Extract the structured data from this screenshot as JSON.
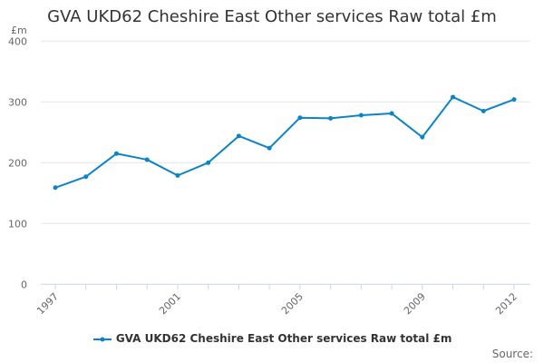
{
  "chart_data": {
    "type": "line",
    "title": "GVA UKD62 Cheshire East Other services Raw total £m",
    "ylabel": "£m",
    "xlabel": "",
    "x": [
      1997,
      1998,
      1999,
      2000,
      2001,
      2002,
      2003,
      2004,
      2005,
      2006,
      2007,
      2008,
      2009,
      2010,
      2011,
      2012
    ],
    "x_tick_labels": [
      "1997",
      "2001",
      "2005",
      "2009",
      "2012"
    ],
    "y_tick_labels": [
      "0",
      "100",
      "200",
      "300",
      "400"
    ],
    "ylim": [
      0,
      400
    ],
    "grid": true,
    "legend_placement": "bottom",
    "series": [
      {
        "name": "GVA UKD62 Cheshire East Other services Raw total £m",
        "color": "#0b84c6",
        "values": [
          159,
          177,
          215,
          205,
          179,
          200,
          244,
          224,
          274,
          273,
          278,
          281,
          242,
          308,
          285,
          304
        ]
      }
    ]
  },
  "source_label": "Source:"
}
